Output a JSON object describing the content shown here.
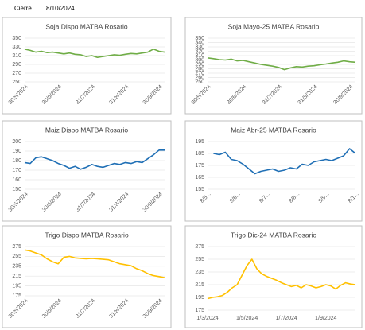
{
  "header": {
    "label": "Cierre",
    "date": "8/10/2024"
  },
  "chart_data": [
    {
      "type": "line",
      "title": "Soja Dispo MATBA Rosario",
      "categories": [
        "30/5/2024",
        null,
        null,
        null,
        null,
        null,
        "30/6/2024",
        null,
        null,
        null,
        null,
        null,
        "31/7/2024",
        null,
        null,
        null,
        null,
        null,
        "31/8/2024",
        null,
        null,
        null,
        null,
        null,
        "30/9/2024",
        null
      ],
      "series": [
        {
          "name": "Soja Dispo",
          "color": "#70ad47",
          "values": [
            325,
            322,
            318,
            320,
            317,
            318,
            316,
            314,
            316,
            313,
            312,
            308,
            310,
            306,
            308,
            310,
            312,
            311,
            313,
            315,
            314,
            316,
            318,
            325,
            320,
            318
          ]
        }
      ],
      "ylim": [
        250,
        350
      ],
      "yticks": [
        250,
        270,
        290,
        310,
        330,
        350
      ],
      "grid": true
    },
    {
      "type": "line",
      "title": "Soja Mayo-25 MATBA Rosario",
      "categories": [
        "30/5/2024",
        null,
        null,
        null,
        null,
        null,
        "30/6/2024",
        null,
        null,
        null,
        null,
        null,
        "31/7/2024",
        null,
        null,
        null,
        null,
        null,
        "31/8/2024",
        null,
        null,
        null,
        null,
        null,
        "30/9/2024",
        null
      ],
      "series": [
        {
          "name": "Soja Mayo-25",
          "color": "#70ad47",
          "values": [
            305,
            303,
            301,
            300,
            302,
            298,
            299,
            296,
            293,
            290,
            288,
            286,
            283,
            278,
            282,
            285,
            284,
            286,
            287,
            289,
            291,
            293,
            295,
            298,
            296,
            295
          ]
        }
      ],
      "ylim": [
        250,
        350
      ],
      "yticks": [
        250,
        260,
        270,
        280,
        290,
        300,
        310,
        320,
        330,
        340,
        350
      ],
      "grid": true
    },
    {
      "type": "line",
      "title": "Maiz Dispo MATBA Rosario",
      "categories": [
        "30/5/2024",
        null,
        null,
        null,
        null,
        null,
        "30/6/2024",
        null,
        null,
        null,
        null,
        null,
        "31/7/2024",
        null,
        null,
        null,
        null,
        null,
        "31/8/2024",
        null,
        null,
        null,
        null,
        null,
        "30/9/2024",
        null
      ],
      "series": [
        {
          "name": "Maiz Dispo",
          "color": "#1f6fb5",
          "values": [
            178,
            177,
            183,
            184,
            182,
            180,
            177,
            175,
            172,
            174,
            171,
            173,
            176,
            174,
            173,
            175,
            177,
            176,
            178,
            177,
            179,
            178,
            182,
            186,
            191,
            191
          ]
        }
      ],
      "ylim": [
        150,
        200
      ],
      "yticks": [
        150,
        160,
        170,
        180,
        190,
        200
      ],
      "grid": true
    },
    {
      "type": "line",
      "title": "Maiz Abr-25 MATBA Rosario",
      "categories": [
        "8/5...",
        null,
        null,
        null,
        null,
        "8/6...",
        null,
        null,
        null,
        null,
        "8/7...",
        null,
        null,
        null,
        null,
        "8/8...",
        null,
        null,
        null,
        null,
        "8/9...",
        null,
        null,
        null,
        null,
        "8/1..."
      ],
      "series": [
        {
          "name": "Maiz Abr-25",
          "color": "#1f6fb5",
          "values": [
            null,
            185,
            184,
            186,
            180,
            179,
            176,
            172,
            168,
            170,
            171,
            172,
            170,
            171,
            173,
            172,
            176,
            175,
            178,
            179,
            180,
            179,
            181,
            183,
            189,
            185
          ]
        }
      ],
      "ylim": [
        155,
        195
      ],
      "yticks": [
        155,
        165,
        175,
        185,
        195
      ],
      "grid": true
    },
    {
      "type": "line",
      "title": "Trigo Dispo MATBA Rosario",
      "categories": [
        "30/5/2024",
        null,
        null,
        null,
        null,
        null,
        "30/6/2024",
        null,
        null,
        null,
        null,
        null,
        "31/7/2024",
        null,
        null,
        null,
        null,
        null,
        "31/8/2024",
        null,
        null,
        null,
        null,
        null,
        "30/9/2024",
        null
      ],
      "series": [
        {
          "name": "Trigo Dispo",
          "color": "#ffc000",
          "values": [
            268,
            266,
            262,
            258,
            250,
            244,
            240,
            253,
            255,
            252,
            251,
            250,
            251,
            250,
            249,
            248,
            244,
            240,
            238,
            236,
            230,
            226,
            220,
            216,
            214,
            212
          ]
        }
      ],
      "ylim": [
        175,
        275
      ],
      "yticks": [
        175,
        195,
        215,
        235,
        255,
        275
      ],
      "grid": true
    },
    {
      "type": "line",
      "title": "Trigo Dic-24 MATBA Rosario",
      "categories": [
        "1/3/2024",
        null,
        null,
        null,
        null,
        null,
        null,
        null,
        "1/5/2024",
        null,
        null,
        null,
        null,
        null,
        null,
        null,
        "1/7/2024",
        null,
        null,
        null,
        null,
        null,
        null,
        null,
        "1/9/2024",
        null,
        null,
        null,
        null,
        null,
        null
      ],
      "series": [
        {
          "name": "Trigo Dic-24",
          "color": "#ffc000",
          "values": [
            193,
            195,
            196,
            198,
            203,
            210,
            215,
            230,
            245,
            255,
            240,
            232,
            228,
            225,
            222,
            218,
            215,
            212,
            214,
            210,
            215,
            213,
            210,
            212,
            215,
            213,
            208,
            214,
            218,
            216,
            215
          ]
        }
      ],
      "ylim": [
        175,
        275
      ],
      "yticks": [
        175,
        195,
        215,
        235,
        255,
        275
      ],
      "grid": true
    }
  ]
}
